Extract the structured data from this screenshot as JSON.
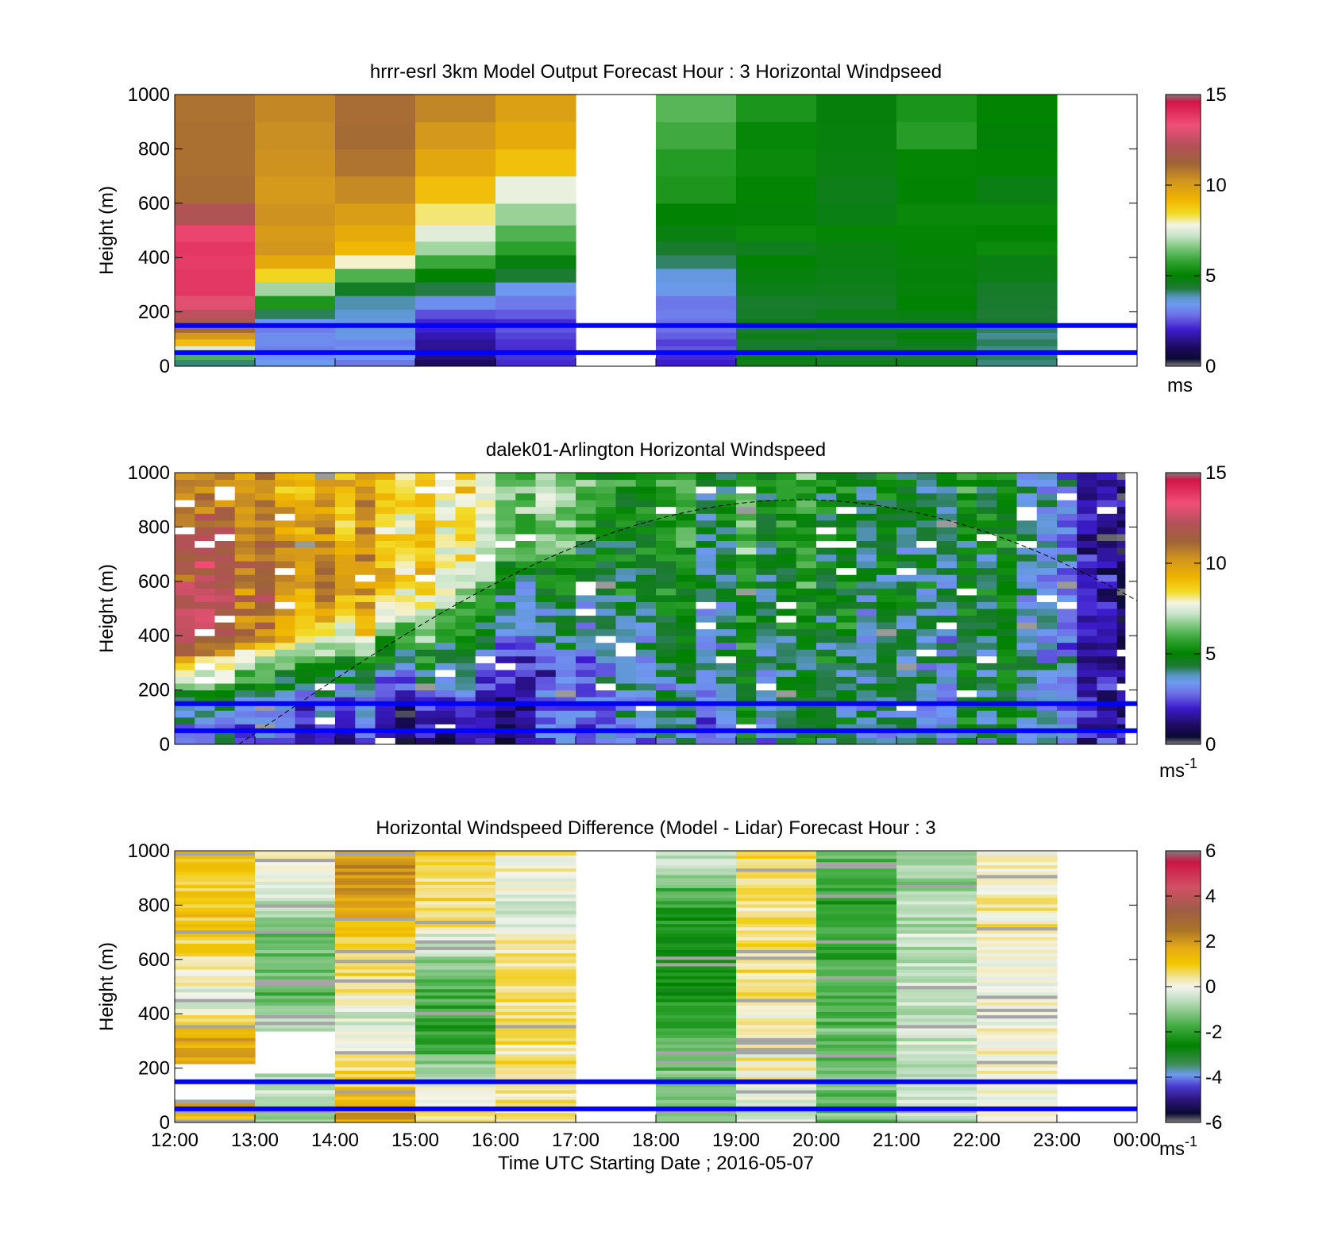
{
  "chart_data": [
    {
      "type": "heatmap",
      "title": "hrrr-esrl 3km Model Output   Forecast Hour : 3 Horizontal Windpseed",
      "xlabel": "",
      "ylabel": "Height (m)",
      "xlim": [
        "12:00",
        "00:00"
      ],
      "ylim": [
        0,
        1000
      ],
      "yticks": [
        0,
        200,
        400,
        600,
        800,
        1000
      ],
      "colorbar": {
        "range": [
          0,
          15
        ],
        "ticks": [
          0,
          5,
          10,
          15
        ],
        "unit": "ms"
      },
      "hlines": [
        150,
        50
      ],
      "hline_color": "#0000ff",
      "colormap": "wind",
      "columns": [
        {
          "start_hour": 12,
          "profile": [
            [
              0,
              2.5
            ],
            [
              20,
              5.0
            ],
            [
              40,
              6.0
            ],
            [
              80,
              8.5
            ],
            [
              130,
              11.0
            ],
            [
              200,
              12.5
            ],
            [
              300,
              14.0
            ],
            [
              500,
              13.5
            ],
            [
              600,
              11.0
            ],
            [
              1000,
              11.0
            ]
          ]
        },
        {
          "start_hour": 13,
          "profile": [
            [
              0,
              3.5
            ],
            [
              150,
              3.0
            ],
            [
              220,
              5.0
            ],
            [
              290,
              7.0
            ],
            [
              350,
              9.0
            ],
            [
              420,
              10.0
            ],
            [
              1000,
              10.5
            ]
          ]
        },
        {
          "start_hour": 14,
          "profile": [
            [
              0,
              3.0
            ],
            [
              150,
              3.5
            ],
            [
              250,
              4.0
            ],
            [
              300,
              5.0
            ],
            [
              350,
              6.5
            ],
            [
              420,
              9.0
            ],
            [
              550,
              10.0
            ],
            [
              700,
              11.0
            ],
            [
              1000,
              11.0
            ]
          ]
        },
        {
          "start_hour": 15,
          "profile": [
            [
              0,
              1.0
            ],
            [
              150,
              2.0
            ],
            [
              250,
              3.5
            ],
            [
              330,
              5.0
            ],
            [
              400,
              6.0
            ],
            [
              470,
              7.5
            ],
            [
              550,
              8.0
            ],
            [
              700,
              9.5
            ],
            [
              1000,
              10.5
            ]
          ]
        },
        {
          "start_hour": 16,
          "profile": [
            [
              0,
              2.0
            ],
            [
              200,
              2.5
            ],
            [
              300,
              3.5
            ],
            [
              380,
              5.0
            ],
            [
              450,
              6.0
            ],
            [
              600,
              7.0
            ],
            [
              700,
              8.5
            ],
            [
              820,
              9.5
            ],
            [
              1000,
              10.0
            ]
          ]
        },
        {
          "start_hour": 18,
          "profile": [
            [
              0,
              2.0
            ],
            [
              200,
              3.0
            ],
            [
              300,
              3.5
            ],
            [
              400,
              4.0
            ],
            [
              550,
              5.0
            ],
            [
              700,
              5.5
            ],
            [
              850,
              6.0
            ],
            [
              1000,
              6.5
            ]
          ]
        },
        {
          "start_hour": 19,
          "profile": [
            [
              0,
              4.5
            ],
            [
              1000,
              5.5
            ]
          ]
        },
        {
          "start_hour": 20,
          "profile": [
            [
              0,
              4.5
            ],
            [
              1000,
              5.0
            ]
          ]
        },
        {
          "start_hour": 21,
          "profile": [
            [
              0,
              4.5
            ],
            [
              350,
              5.0
            ],
            [
              1000,
              5.5
            ]
          ]
        },
        {
          "start_hour": 22,
          "profile": [
            [
              0,
              4.0
            ],
            [
              300,
              4.5
            ],
            [
              450,
              5.0
            ],
            [
              1000,
              5.0
            ]
          ]
        }
      ]
    },
    {
      "type": "heatmap",
      "title": "dalek01-Arlington  Horizontal Windspeed",
      "xlabel": "",
      "ylabel": "Height (m)",
      "xlim": [
        "12:00",
        "00:00"
      ],
      "ylim": [
        0,
        1000
      ],
      "yticks": [
        0,
        200,
        400,
        600,
        800,
        1000
      ],
      "colorbar": {
        "range": [
          0,
          15
        ],
        "ticks": [
          0,
          5,
          10,
          15
        ],
        "unit": "ms",
        "unit_sup": "-1"
      },
      "hlines": [
        150,
        50
      ],
      "hline_color": "#0000ff",
      "colormap": "wind",
      "data_end_hour": 23.85,
      "dashed_curve": {
        "peak_height": 900,
        "peak_hour": 19.8,
        "hours": [
          12.8,
          24.0
        ]
      },
      "profile_by_hour": [
        [
          12.0,
          [
            [
              0,
              3.0
            ],
            [
              150,
              4.0
            ],
            [
              250,
              8.0
            ],
            [
              400,
              13.5
            ],
            [
              600,
              12.5
            ],
            [
              1000,
              11.0
            ]
          ]
        ],
        [
          13.5,
          [
            [
              0,
              2.5
            ],
            [
              150,
              3.5
            ],
            [
              300,
              6.0
            ],
            [
              400,
              9.0
            ],
            [
              600,
              11.0
            ],
            [
              1000,
              9.5
            ]
          ]
        ],
        [
          15.0,
          [
            [
              0,
              1.0
            ],
            [
              150,
              2.0
            ],
            [
              300,
              4.5
            ],
            [
              450,
              7.0
            ],
            [
              600,
              9.0
            ],
            [
              1000,
              9.0
            ]
          ]
        ],
        [
          16.5,
          [
            [
              0,
              2.5
            ],
            [
              300,
              2.5
            ],
            [
              600,
              5.0
            ],
            [
              850,
              7.0
            ],
            [
              1000,
              7.0
            ]
          ]
        ],
        [
          17.5,
          [
            [
              0,
              3.0
            ],
            [
              400,
              4.0
            ],
            [
              700,
              5.0
            ],
            [
              1000,
              6.0
            ]
          ]
        ],
        [
          20.0,
          [
            [
              0,
              4.5
            ],
            [
              1000,
              5.5
            ]
          ]
        ],
        [
          22.0,
          [
            [
              0,
              4.0
            ],
            [
              1000,
              5.0
            ]
          ]
        ],
        [
          23.0,
          [
            [
              0,
              3.0
            ],
            [
              1000,
              2.5
            ]
          ]
        ],
        [
          24.0,
          [
            [
              0,
              1.5
            ],
            [
              1000,
              1.0
            ]
          ]
        ]
      ]
    },
    {
      "type": "heatmap",
      "title": "Horizontal Windspeed Difference (Model - Lidar) Forecast Hour : 3",
      "xlabel": "Time UTC  Starting Date ; 2016-05-07",
      "ylabel": "Height (m)",
      "xlim": [
        "12:00",
        "00:00"
      ],
      "xticks": [
        "12:00",
        "13:00",
        "14:00",
        "15:00",
        "16:00",
        "17:00",
        "18:00",
        "19:00",
        "20:00",
        "21:00",
        "22:00",
        "23:00",
        "00:00"
      ],
      "ylim": [
        0,
        1000
      ],
      "yticks": [
        0,
        200,
        400,
        600,
        800,
        1000
      ],
      "colorbar": {
        "range": [
          -6,
          6
        ],
        "ticks": [
          -6,
          -4,
          -2,
          0,
          2,
          4,
          6
        ],
        "unit": "ms",
        "unit_sup": "-1"
      },
      "hlines": [
        150,
        50
      ],
      "hline_color": "#0000ff",
      "colormap": "diff",
      "columns": [
        {
          "start_hour": 12,
          "blank_ranges": [
            [
              85,
              215
            ]
          ],
          "profile": [
            [
              0,
              0.5
            ],
            [
              50,
              1.5
            ],
            [
              215,
              2.0
            ],
            [
              350,
              1.5
            ],
            [
              430,
              -0.3
            ],
            [
              550,
              0.4
            ],
            [
              700,
              1.0
            ],
            [
              1000,
              1.0
            ]
          ]
        },
        {
          "start_hour": 13,
          "blank_ranges": [
            [
              180,
              330
            ]
          ],
          "profile": [
            [
              0,
              -1.0
            ],
            [
              180,
              -0.5
            ],
            [
              330,
              -0.7
            ],
            [
              500,
              -1.5
            ],
            [
              700,
              -1.3
            ],
            [
              850,
              -0.5
            ],
            [
              1000,
              0.5
            ]
          ]
        },
        {
          "start_hour": 14,
          "profile": [
            [
              0,
              2.0
            ],
            [
              200,
              0.5
            ],
            [
              350,
              -0.3
            ],
            [
              500,
              0.5
            ],
            [
              700,
              1.0
            ],
            [
              850,
              2.0
            ],
            [
              1000,
              2.0
            ]
          ]
        },
        {
          "start_hour": 15,
          "profile": [
            [
              0,
              0.7
            ],
            [
              150,
              -0.5
            ],
            [
              300,
              -2.0
            ],
            [
              500,
              -1.5
            ],
            [
              650,
              -0.8
            ],
            [
              750,
              0.5
            ],
            [
              1000,
              1.0
            ]
          ]
        },
        {
          "start_hour": 16,
          "profile": [
            [
              0,
              0.4
            ],
            [
              150,
              0.5
            ],
            [
              300,
              0.6
            ],
            [
              600,
              0.5
            ],
            [
              800,
              -0.3
            ],
            [
              1000,
              0.3
            ]
          ]
        },
        {
          "start_hour": 18,
          "profile": [
            [
              0,
              -1.0
            ],
            [
              300,
              -1.5
            ],
            [
              500,
              -2.5
            ],
            [
              800,
              -2.0
            ],
            [
              900,
              -1.0
            ],
            [
              1000,
              -0.5
            ]
          ]
        },
        {
          "start_hour": 19,
          "profile": [
            [
              0,
              -0.5
            ],
            [
              300,
              0.3
            ],
            [
              600,
              0.4
            ],
            [
              800,
              0.6
            ],
            [
              1000,
              0.8
            ]
          ]
        },
        {
          "start_hour": 20,
          "profile": [
            [
              0,
              -1.2
            ],
            [
              300,
              -1.5
            ],
            [
              600,
              -1.8
            ],
            [
              800,
              -2.0
            ],
            [
              1000,
              -1.5
            ]
          ]
        },
        {
          "start_hour": 21,
          "profile": [
            [
              0,
              -0.5
            ],
            [
              400,
              -0.5
            ],
            [
              700,
              -0.6
            ],
            [
              1000,
              -1.0
            ]
          ]
        },
        {
          "start_hour": 22,
          "profile": [
            [
              0,
              0.3
            ],
            [
              400,
              0.0
            ],
            [
              700,
              0.3
            ],
            [
              1000,
              0.2
            ]
          ]
        }
      ]
    }
  ]
}
